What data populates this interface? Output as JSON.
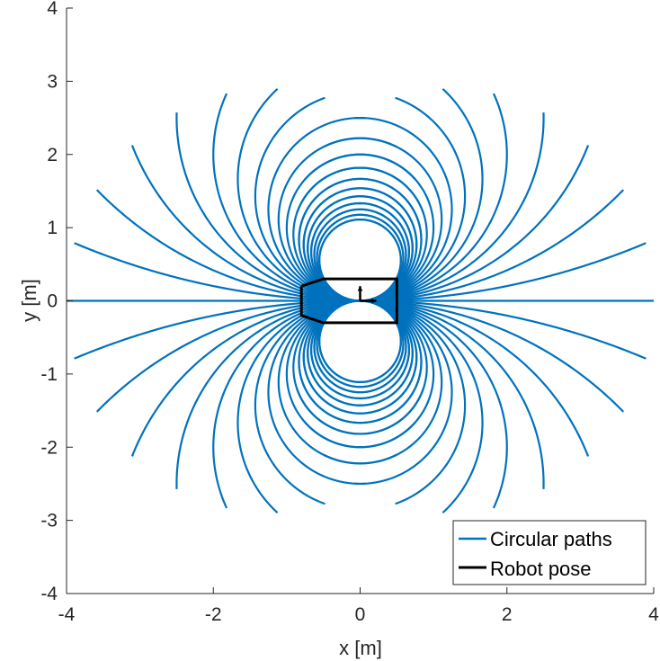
{
  "chart_data": {
    "type": "line",
    "title": "",
    "xlabel": "x [m]",
    "ylabel": "y [m]",
    "xlim": [
      -4,
      4
    ],
    "ylim": [
      -4,
      4
    ],
    "xticks": [
      -4,
      -2,
      0,
      2,
      4
    ],
    "yticks": [
      -4,
      -3,
      -2,
      -1,
      0,
      1,
      2,
      3,
      4
    ],
    "x_tick_labels": [
      "-4",
      "-2",
      "0",
      "2",
      "4"
    ],
    "y_tick_labels": [
      "-4",
      "-3",
      "-2",
      "-1",
      "0",
      "1",
      "2",
      "3",
      "4"
    ],
    "grid": false,
    "legend_location": "bottom-right",
    "series": [
      {
        "name": "Circular paths",
        "color": "#0072BD",
        "kind": "circular-arc-family",
        "arc_length_m": 4,
        "curvatures_per_m": [
          -1.8,
          -1.7,
          -1.6,
          -1.5,
          -1.4,
          -1.3,
          -1.2,
          -1.1,
          -1.0,
          -0.9,
          -0.8,
          -0.7,
          -0.6,
          -0.5,
          -0.4,
          -0.3,
          -0.2,
          -0.1,
          0,
          0.1,
          0.2,
          0.3,
          0.4,
          0.5,
          0.6,
          0.7,
          0.8,
          0.9,
          1.0,
          1.1,
          1.2,
          1.3,
          1.4,
          1.5,
          1.6,
          1.7,
          1.8
        ],
        "directions": [
          "forward",
          "backward"
        ]
      },
      {
        "name": "Robot pose",
        "color": "#000000",
        "footprint": [
          [
            -0.8,
            0.2
          ],
          [
            -0.8,
            -0.2
          ],
          [
            -0.5,
            -0.3
          ],
          [
            0.5,
            -0.3
          ],
          [
            0.5,
            0.3
          ],
          [
            -0.5,
            0.3
          ],
          [
            -0.8,
            0.2
          ]
        ],
        "pose_x_axis": [
          [
            0,
            0
          ],
          [
            0.22,
            0
          ]
        ],
        "pose_y_axis": [
          [
            0,
            0
          ],
          [
            0,
            0.2
          ]
        ]
      }
    ]
  }
}
